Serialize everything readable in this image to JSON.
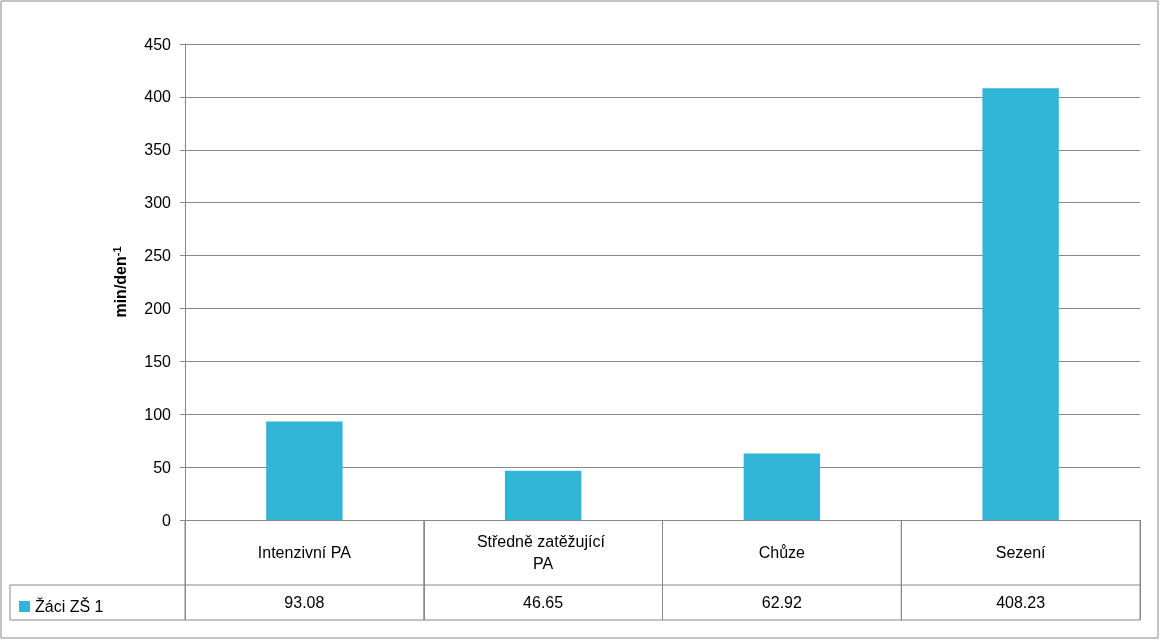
{
  "chart_data": {
    "type": "bar",
    "ylabel": "min/den$^{-1}$",
    "categories": [
      "Intenzivní PA",
      "Středně zatěžující PA",
      "Chůze",
      "Sezení"
    ],
    "series": [
      {
        "name": "Žáci ZŠ 1",
        "color": "#31b5d7",
        "values": [
          93.08,
          46.65,
          62.92,
          408.23
        ]
      }
    ],
    "ylim": [
      0,
      450
    ],
    "yticks": [
      0,
      50,
      100,
      150,
      200,
      250,
      300,
      350,
      400,
      450
    ],
    "grid": "y",
    "legend": "bottom left",
    "data_labels": true
  }
}
